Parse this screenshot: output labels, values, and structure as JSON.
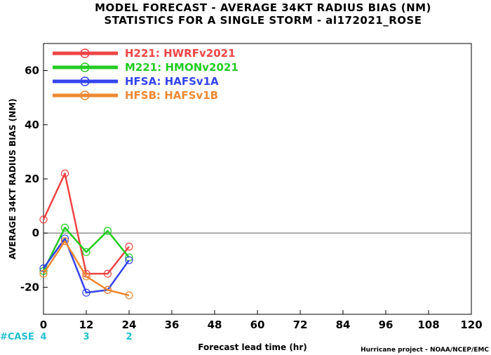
{
  "header": {
    "title_line1": "MODEL FORECAST - AVERAGE 34KT RADIUS BIAS (NM)",
    "title_line2": "STATISTICS FOR A SINGLE STORM - al172021_ROSE"
  },
  "footer": {
    "case_label": "#CASE",
    "credit": "Hurricane project - NOAA/NCEP/EMC"
  },
  "colors": {
    "case": "#22c0d0",
    "zero_line": "#6e6e6e"
  },
  "chart_data": {
    "type": "line",
    "xlabel": "Forecast lead time (hr)",
    "ylabel": "AVERAGE 34KT RADIUS BIAS (NM)",
    "xlim": [
      0,
      120
    ],
    "ylim": [
      -30,
      70
    ],
    "xticks": [
      0,
      12,
      24,
      36,
      48,
      60,
      72,
      84,
      96,
      108,
      120
    ],
    "yticks": [
      -20,
      0,
      20,
      40,
      60
    ],
    "grid": false,
    "legend": "top-left",
    "x": [
      0,
      6,
      12,
      18,
      24
    ],
    "series": [
      {
        "name": "H221: HWRFv2021",
        "color": "#ee4444",
        "values": [
          5,
          22,
          -15,
          -15,
          -5
        ]
      },
      {
        "name": "M221: HMONv2021",
        "color": "#22cc22",
        "values": [
          -14,
          2,
          -7,
          0.8,
          -9
        ]
      },
      {
        "name": "HFSA: HAFSv1A",
        "color": "#3344ee",
        "values": [
          -13,
          -2,
          -22,
          -21,
          -10
        ]
      },
      {
        "name": "HFSB: HAFSv1B",
        "color": "#ee8833",
        "values": [
          -15,
          -3,
          -16,
          -21,
          -23
        ]
      }
    ],
    "case_counts": [
      {
        "x": 0,
        "count": "4"
      },
      {
        "x": 12,
        "count": "3"
      },
      {
        "x": 24,
        "count": "2"
      }
    ]
  }
}
